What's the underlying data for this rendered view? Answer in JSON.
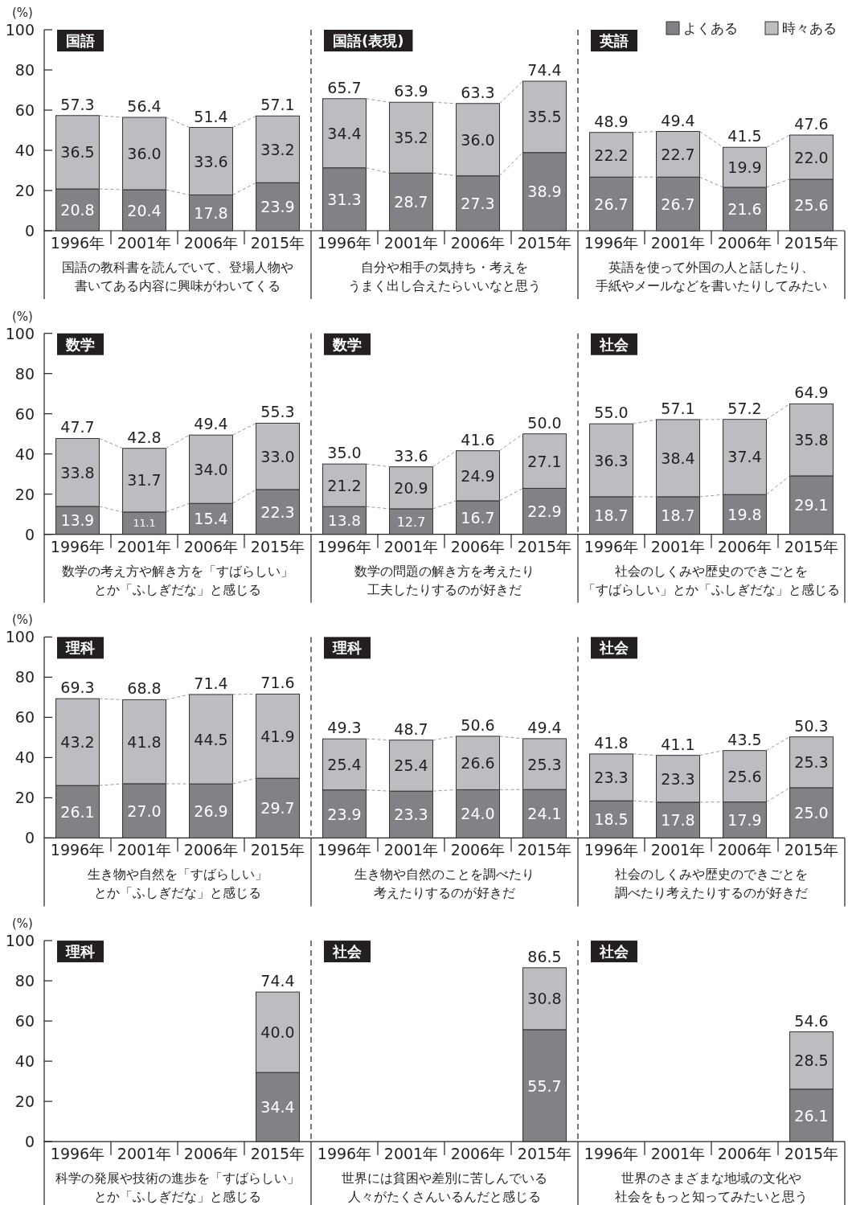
{
  "chart_data": [
    {
      "type": "bar",
      "stacked": true,
      "title": "国語",
      "ylabel": "(%)",
      "xlabel": "国語の教科書を読んでいて、登場人物や書いてある内容に興味がわいてくる",
      "categories": [
        "1996年",
        "2001年",
        "2006年",
        "2015年"
      ],
      "ylim": [
        0,
        100
      ],
      "yticks": [
        0,
        20,
        40,
        60,
        80,
        100
      ],
      "series": [
        {
          "color": "#818285",
          "values": [
            20.8,
            20.4,
            17.8,
            23.9
          ],
          "value_labels": [
            "20.8",
            "20.4",
            "17.8",
            "23.9"
          ]
        },
        {
          "color": "#bcbdc0",
          "values": [
            36.5,
            36.0,
            33.6,
            33.2
          ],
          "value_labels": [
            "36.5",
            "36.0",
            "33.6",
            "33.2"
          ]
        }
      ],
      "totals": [
        "57.3",
        "56.4",
        "51.4",
        "57.1"
      ]
    },
    {
      "type": "bar",
      "stacked": true,
      "title": "国語(表現)",
      "xlabel": "自分や相手の気持ち・考えをうまく出し合えたらいいなと思う",
      "categories": [
        "1996年",
        "2001年",
        "2006年",
        "2015年"
      ],
      "ylim": [
        0,
        100
      ],
      "tick_labels": "x",
      "series": [
        {
          "color": "#818285",
          "values": [
            31.3,
            28.7,
            27.3,
            38.9
          ],
          "value_labels": [
            "31.3",
            "28.7",
            "27.3",
            "38.9"
          ]
        },
        {
          "color": "#bcbdc0",
          "values": [
            34.4,
            35.2,
            36.0,
            35.5
          ],
          "value_labels": [
            "34.4",
            "35.2",
            "36.0",
            "35.5"
          ]
        }
      ],
      "totals": [
        "65.7",
        "63.9",
        "63.3",
        "74.4"
      ]
    },
    {
      "type": "bar",
      "stacked": true,
      "title": "英語",
      "xlabel": "英語を使って外国の人と話したり、手紙やメールなどを書いたりしてみたい",
      "categories": [
        "1996年",
        "2001年",
        "2006年",
        "2015年"
      ],
      "ylim": [
        0,
        100
      ],
      "tick_labels": "x",
      "legend": "top right",
      "series": [
        {
          "name": "よくある",
          "color": "#818285",
          "values": [
            26.7,
            26.7,
            21.6,
            25.6
          ],
          "value_labels": [
            "26.7",
            "26.7",
            "21.6",
            "25.6"
          ]
        },
        {
          "name": "時々ある",
          "color": "#bcbdc0",
          "values": [
            22.2,
            22.7,
            19.9,
            22.0
          ],
          "value_labels": [
            "22.2",
            "22.7",
            "19.9",
            "22.0"
          ]
        }
      ],
      "totals": [
        "48.9",
        "49.4",
        "41.5",
        "47.6"
      ]
    },
    {
      "type": "bar",
      "stacked": true,
      "title": "数学",
      "ylabel": "(%)",
      "xlabel": "数学の考え方や解き方を「すばらしい」とか「ふしぎだな」と感じる",
      "categories": [
        "1996年",
        "2001年",
        "2006年",
        "2015年"
      ],
      "ylim": [
        0,
        100
      ],
      "yticks": [
        0,
        20,
        40,
        60,
        80,
        100
      ],
      "series": [
        {
          "color": "#818285",
          "values": [
            13.9,
            11.1,
            15.4,
            22.3
          ],
          "value_labels": [
            "13.9",
            "11.1",
            "15.4",
            "22.3"
          ]
        },
        {
          "color": "#bcbdc0",
          "values": [
            33.8,
            31.7,
            34.0,
            33.0
          ],
          "value_labels": [
            "33.8",
            "31.7",
            "34.0",
            "33.0"
          ]
        }
      ],
      "totals": [
        "47.7",
        "42.8",
        "49.4",
        "55.3"
      ]
    },
    {
      "type": "bar",
      "stacked": true,
      "title": "数学",
      "xlabel": "数学の問題の解き方を考えたり工夫したりするのが好きだ",
      "categories": [
        "1996年",
        "2001年",
        "2006年",
        "2015年"
      ],
      "ylim": [
        0,
        100
      ],
      "tick_labels": "x",
      "series": [
        {
          "color": "#818285",
          "values": [
            13.8,
            12.7,
            16.7,
            22.9
          ],
          "value_labels": [
            "13.8",
            "12.7",
            "16.7",
            "22.9"
          ]
        },
        {
          "color": "#bcbdc0",
          "values": [
            21.2,
            20.9,
            24.9,
            27.1
          ],
          "value_labels": [
            "21.2",
            "20.9",
            "24.9",
            "27.1"
          ]
        }
      ],
      "totals": [
        "35.0",
        "33.6",
        "41.6",
        "50.0"
      ]
    },
    {
      "type": "bar",
      "stacked": true,
      "title": "社会",
      "xlabel": "社会のしくみや歴史のできごとを「すばらしい」とか「ふしぎだな」と感じる",
      "categories": [
        "1996年",
        "2001年",
        "2006年",
        "2015年"
      ],
      "ylim": [
        0,
        100
      ],
      "tick_labels": "x",
      "series": [
        {
          "color": "#818285",
          "values": [
            18.7,
            18.7,
            19.8,
            29.1
          ],
          "value_labels": [
            "18.7",
            "18.7",
            "19.8",
            "29.1"
          ]
        },
        {
          "color": "#bcbdc0",
          "values": [
            36.3,
            38.4,
            37.4,
            35.8
          ],
          "value_labels": [
            "36.3",
            "38.4",
            "37.4",
            "35.8"
          ]
        }
      ],
      "totals": [
        "55.0",
        "57.1",
        "57.2",
        "64.9"
      ]
    },
    {
      "type": "bar",
      "stacked": true,
      "title": "理科",
      "ylabel": "(%)",
      "xlabel": "生き物や自然を「すばらしい」とか「ふしぎだな」と感じる",
      "categories": [
        "1996年",
        "2001年",
        "2006年",
        "2015年"
      ],
      "ylim": [
        0,
        100
      ],
      "yticks": [
        0,
        20,
        40,
        60,
        80,
        100
      ],
      "series": [
        {
          "color": "#818285",
          "values": [
            26.1,
            27.0,
            26.9,
            29.7
          ],
          "value_labels": [
            "26.1",
            "27.0",
            "26.9",
            "29.7"
          ]
        },
        {
          "color": "#bcbdc0",
          "values": [
            43.2,
            41.8,
            44.5,
            41.9
          ],
          "value_labels": [
            "43.2",
            "41.8",
            "44.5",
            "41.9"
          ]
        }
      ],
      "totals": [
        "69.3",
        "68.8",
        "71.4",
        "71.6"
      ]
    },
    {
      "type": "bar",
      "stacked": true,
      "title": "理科",
      "xlabel": "生き物や自然のことを調べたり考えたりするのが好きだ",
      "categories": [
        "1996年",
        "2001年",
        "2006年",
        "2015年"
      ],
      "ylim": [
        0,
        100
      ],
      "tick_labels": "x",
      "series": [
        {
          "color": "#818285",
          "values": [
            23.9,
            23.3,
            24.0,
            24.1
          ],
          "value_labels": [
            "23.9",
            "23.3",
            "24.0",
            "24.1"
          ]
        },
        {
          "color": "#bcbdc0",
          "values": [
            25.4,
            25.4,
            26.6,
            25.3
          ],
          "value_labels": [
            "25.4",
            "25.4",
            "26.6",
            "25.3"
          ]
        }
      ],
      "totals": [
        "49.3",
        "48.7",
        "50.6",
        "49.4"
      ]
    },
    {
      "type": "bar",
      "stacked": true,
      "title": "社会",
      "xlabel": "社会のしくみや歴史のできごとを調べたり考えたりするのが好きだ",
      "categories": [
        "1996年",
        "2001年",
        "2006年",
        "2015年"
      ],
      "ylim": [
        0,
        100
      ],
      "tick_labels": "x",
      "series": [
        {
          "color": "#818285",
          "values": [
            18.5,
            17.8,
            17.9,
            25.0
          ],
          "value_labels": [
            "18.5",
            "17.8",
            "17.9",
            "25.0"
          ]
        },
        {
          "color": "#bcbdc0",
          "values": [
            23.3,
            23.3,
            25.6,
            25.3
          ],
          "value_labels": [
            "23.3",
            "23.3",
            "25.6",
            "25.3"
          ]
        }
      ],
      "totals": [
        "41.8",
        "41.1",
        "43.5",
        "50.3"
      ]
    },
    {
      "type": "bar",
      "stacked": true,
      "title": "理科",
      "ylabel": "(%)",
      "xlabel": "科学の発展や技術の進歩を「すばらしい」とか「ふしぎだな」と感じる",
      "categories": [
        "1996年",
        "2001年",
        "2006年",
        "2015年"
      ],
      "ylim": [
        0,
        100
      ],
      "yticks": [
        0,
        20,
        40,
        60,
        80,
        100
      ],
      "series": [
        {
          "color": "#818285",
          "values": [
            null,
            null,
            null,
            34.4
          ],
          "value_labels": [
            null,
            null,
            null,
            "34.4"
          ]
        },
        {
          "color": "#bcbdc0",
          "values": [
            null,
            null,
            null,
            40.0
          ],
          "value_labels": [
            null,
            null,
            null,
            "40.0"
          ]
        }
      ],
      "totals": [
        null,
        null,
        null,
        "74.4"
      ]
    },
    {
      "type": "bar",
      "stacked": true,
      "title": "社会",
      "xlabel": "世界には貧困や差別に苦しんでいる人々がたくさんいるんだと感じる",
      "categories": [
        "1996年",
        "2001年",
        "2006年",
        "2015年"
      ],
      "ylim": [
        0,
        100
      ],
      "tick_labels": "x",
      "series": [
        {
          "color": "#818285",
          "values": [
            null,
            null,
            null,
            55.7
          ],
          "value_labels": [
            null,
            null,
            null,
            "55.7"
          ]
        },
        {
          "color": "#bcbdc0",
          "values": [
            null,
            null,
            null,
            30.8
          ],
          "value_labels": [
            null,
            null,
            null,
            "30.8"
          ]
        }
      ],
      "totals": [
        null,
        null,
        null,
        "86.5"
      ]
    },
    {
      "type": "bar",
      "stacked": true,
      "title": "社会",
      "xlabel": "世界のさまざまな地域の文化や社会をもっと知ってみたいと思う",
      "categories": [
        "1996年",
        "2001年",
        "2006年",
        "2015年"
      ],
      "ylim": [
        0,
        100
      ],
      "tick_labels": "x",
      "series": [
        {
          "color": "#818285",
          "values": [
            null,
            null,
            null,
            26.1
          ],
          "value_labels": [
            null,
            null,
            null,
            "26.1"
          ]
        },
        {
          "color": "#bcbdc0",
          "values": [
            null,
            null,
            null,
            28.5
          ],
          "value_labels": [
            null,
            null,
            null,
            "28.5"
          ]
        }
      ],
      "totals": [
        null,
        null,
        null,
        "54.6"
      ]
    }
  ]
}
